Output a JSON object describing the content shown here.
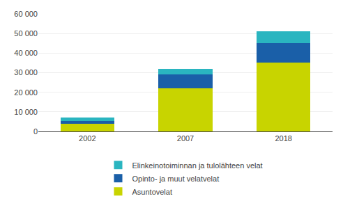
{
  "chart_data": {
    "type": "bar",
    "stacked": true,
    "categories": [
      "2002",
      "2007",
      "2018"
    ],
    "series": [
      {
        "name": "Asuntovelat",
        "color": "#c8d400",
        "values": [
          4000,
          22000,
          35000
        ]
      },
      {
        "name": "Opinto- ja muut velatvelat",
        "color": "#1a5fa8",
        "values": [
          1500,
          7000,
          10000
        ]
      },
      {
        "name": "Elinkeinotoiminnan ja tulolähteen velat",
        "color": "#2ab5c0",
        "values": [
          1500,
          3000,
          6000
        ]
      }
    ],
    "ylim": [
      0,
      60000
    ],
    "yticks": [
      0,
      {
        "value": 10000,
        "label": "10 000"
      },
      {
        "value": 20000,
        "label": "20 000"
      },
      {
        "value": 30000,
        "label": "30 000"
      },
      {
        "value": 40000,
        "label": "40 000"
      },
      {
        "value": 50000,
        "label": "50 000"
      },
      {
        "value": 60000,
        "label": "60 000"
      }
    ],
    "grid": true,
    "legend": "bottom"
  }
}
